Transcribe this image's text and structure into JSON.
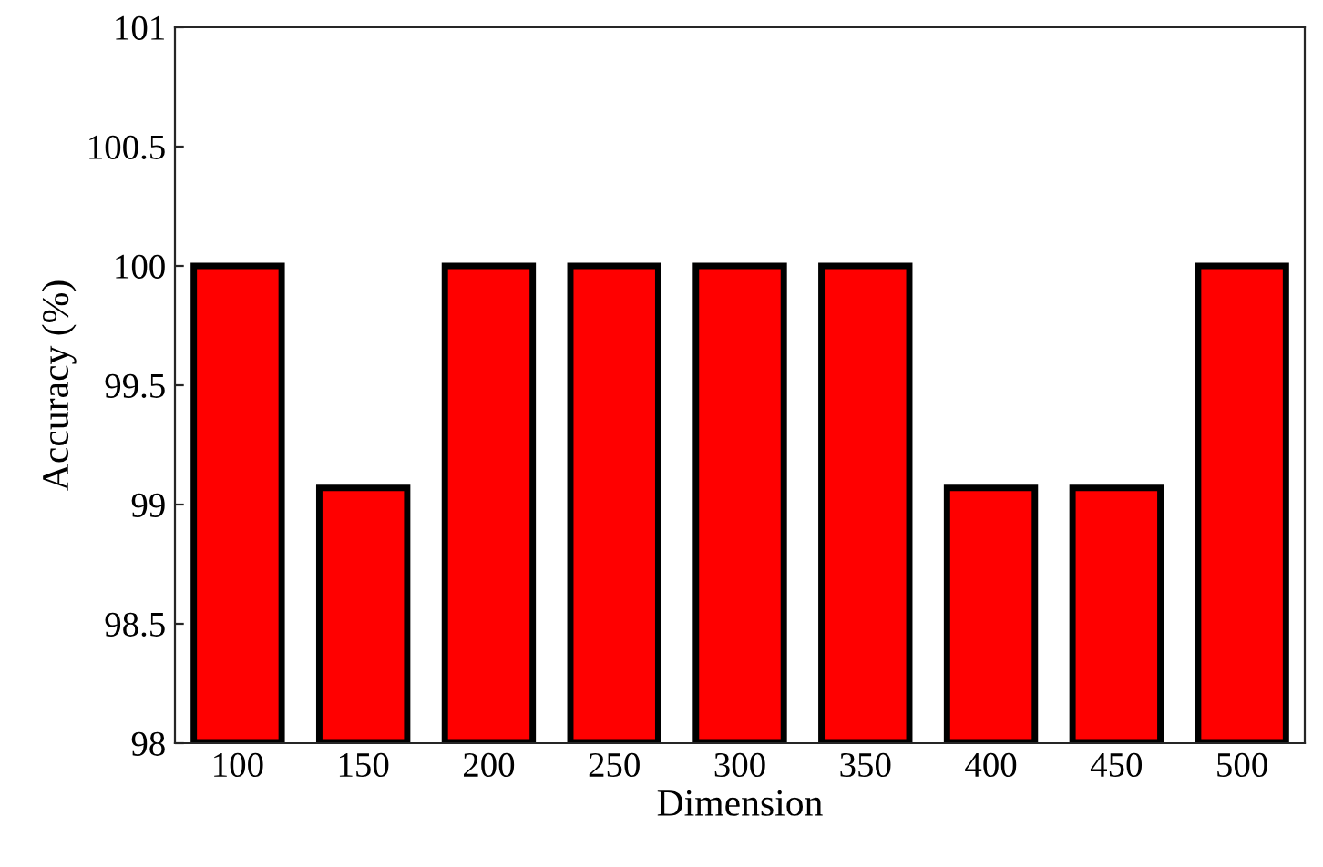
{
  "chart_data": {
    "type": "bar",
    "xlabel": "Dimension",
    "ylabel": "Accuracy (%)",
    "categories": [
      "100",
      "150",
      "200",
      "250",
      "300",
      "350",
      "400",
      "450",
      "500"
    ],
    "values": [
      100,
      99.07,
      100,
      100,
      100,
      100,
      99.07,
      99.07,
      100
    ],
    "color": "#ff0000",
    "ylim": [
      98,
      101
    ],
    "yticks": [
      98,
      98.5,
      99,
      99.5,
      100,
      100.5,
      101
    ],
    "grid": false
  }
}
